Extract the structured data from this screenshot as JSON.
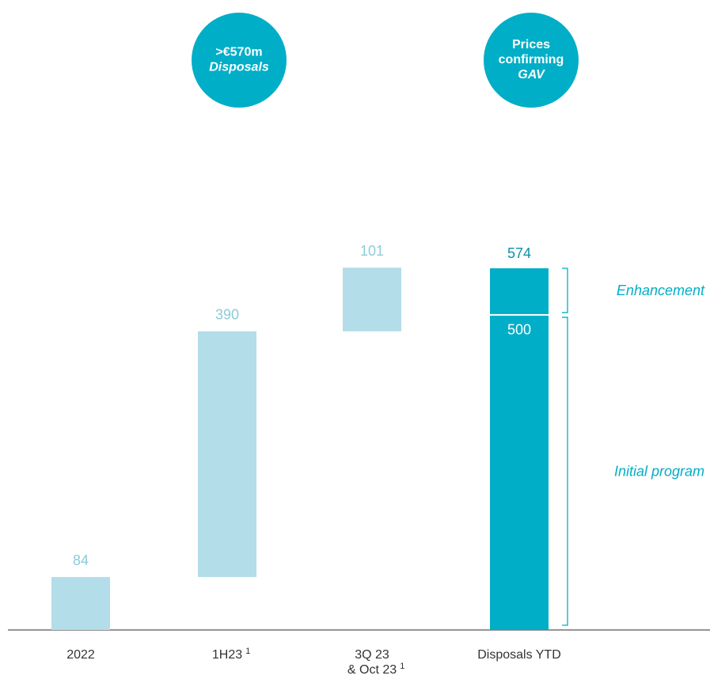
{
  "chart_data": {
    "type": "waterfall",
    "bubbles": [
      {
        "lines": [
          ">€570m"
        ],
        "italic_lines": [
          "Disposals"
        ]
      },
      {
        "lines": [
          "Prices",
          "confirming"
        ],
        "italic_lines": [
          "GAV"
        ]
      }
    ],
    "categories": [
      [
        "2022"
      ],
      [
        "1H23"
      ],
      [
        "3Q 23",
        "& Oct 23"
      ],
      [
        "Disposals YTD"
      ]
    ],
    "footnote_marks": [
      null,
      "1",
      "1",
      null
    ],
    "values": [
      84,
      390,
      101,
      574
    ],
    "initial_program": {
      "label": "Initial program",
      "value": 500
    },
    "enhancement": {
      "label": "Enhancement"
    },
    "step_color": "#b3dde8",
    "step_label_color": "#8ccbdc",
    "total_color": "#00aec7",
    "total_label_color": "#0a93a8",
    "bubble_color": "#00aec7"
  }
}
